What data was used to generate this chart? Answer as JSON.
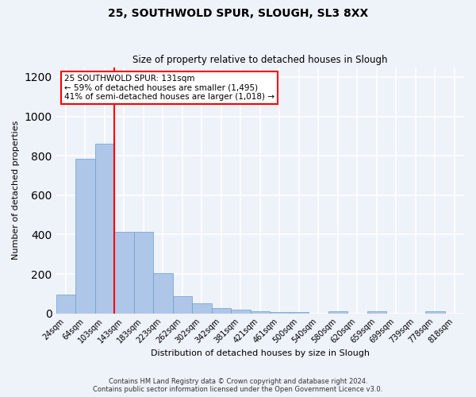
{
  "title": "25, SOUTHWOLD SPUR, SLOUGH, SL3 8XX",
  "subtitle": "Size of property relative to detached houses in Slough",
  "xlabel": "Distribution of detached houses by size in Slough",
  "ylabel": "Number of detached properties",
  "categories": [
    "24sqm",
    "64sqm",
    "103sqm",
    "143sqm",
    "183sqm",
    "223sqm",
    "262sqm",
    "302sqm",
    "342sqm",
    "381sqm",
    "421sqm",
    "461sqm",
    "500sqm",
    "540sqm",
    "580sqm",
    "620sqm",
    "659sqm",
    "699sqm",
    "739sqm",
    "778sqm",
    "818sqm"
  ],
  "values": [
    95,
    785,
    860,
    415,
    415,
    205,
    88,
    52,
    25,
    20,
    10,
    5,
    5,
    0,
    10,
    0,
    10,
    0,
    0,
    10,
    0
  ],
  "bar_color": "#aec6e8",
  "bar_edge_color": "#6a9fcb",
  "vline_x_index": 2.5,
  "vline_color": "red",
  "annotation_text": "25 SOUTHWOLD SPUR: 131sqm\n← 59% of detached houses are smaller (1,495)\n41% of semi-detached houses are larger (1,018) →",
  "annotation_box_color": "white",
  "annotation_box_edge_color": "red",
  "ylim": [
    0,
    1250
  ],
  "yticks": [
    0,
    200,
    400,
    600,
    800,
    1000,
    1200
  ],
  "footnote": "Contains HM Land Registry data © Crown copyright and database right 2024.\nContains public sector information licensed under the Open Government Licence v3.0.",
  "bg_color": "#eef2f9",
  "plot_bg_color": "#eef2f9",
  "grid_color": "white"
}
